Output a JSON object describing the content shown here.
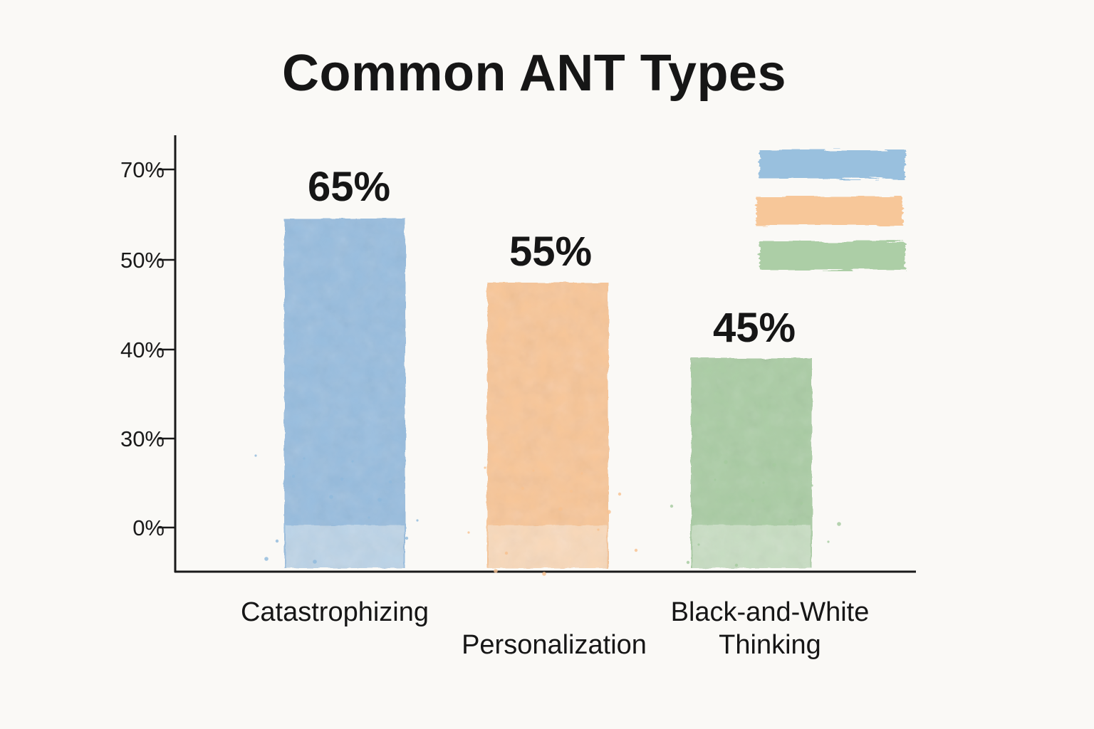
{
  "chart_data": {
    "type": "bar",
    "title": "Common ANT Types",
    "categories": [
      "Catastrophizing",
      "Personalization",
      "Black-and-White Thinking"
    ],
    "values": [
      65,
      55,
      45
    ],
    "data_labels": [
      "65%",
      "55%",
      "45%"
    ],
    "y_ticks": [
      {
        "value": 0,
        "label": "0%"
      },
      {
        "value": 30,
        "label": "30%"
      },
      {
        "value": 40,
        "label": "40%"
      },
      {
        "value": 50,
        "label": "50%"
      },
      {
        "value": 70,
        "label": "70%"
      }
    ],
    "ylim": [
      0,
      70
    ],
    "grid": false,
    "legend": {
      "position": "top-right",
      "entries": [
        "",
        "",
        ""
      ]
    },
    "colors": [
      "#8fb9dc",
      "#f7c18f",
      "#a4c99d"
    ],
    "xlabel": "",
    "ylabel": ""
  }
}
